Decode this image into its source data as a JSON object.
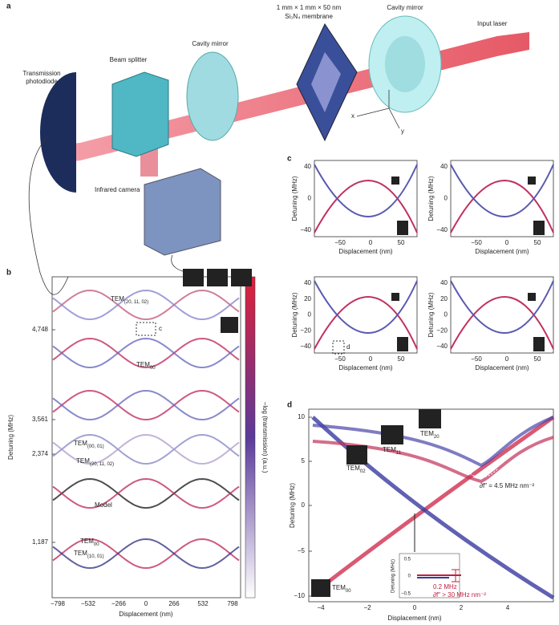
{
  "panel_a": {
    "label": "a",
    "photodiode": [
      "Transmission",
      "photodiode"
    ],
    "beam_splitter": "Beam splitter",
    "cavity_mirror_left": "Cavity mirror",
    "membrane": [
      "1 mm × 1 mm × 50 nm",
      "Si₃N₄ membrane"
    ],
    "cavity_mirror_right": "Cavity mirror",
    "input_laser": "Input laser",
    "infrared_camera": "Infrared camera",
    "axis_x": "x",
    "axis_y": "y"
  },
  "panel_b": {
    "label": "b",
    "y_label": "Detuning (MHz)",
    "x_label": "Displacement (nm)",
    "colorbar_label": "−log (transmission) (a.u.)",
    "yticks": [
      "4,748",
      "3,561",
      "2,374",
      "1,187"
    ],
    "xticks": [
      "−798",
      "−532",
      "−266",
      "0",
      "266",
      "532",
      "798"
    ],
    "inset_marker": "c",
    "annotations": [
      {
        "main": "TEM",
        "sub": "(20, 11, 02)"
      },
      {
        "main": "TEM",
        "sub": "00"
      },
      {
        "main": "TEM",
        "sub": "(00, 01)"
      },
      {
        "main": "TEM",
        "sub": "(20, 11, 02)"
      },
      {
        "main": "Model"
      },
      {
        "main": "TEM",
        "sub": "00"
      },
      {
        "main": "TEM",
        "sub": "(10, 01)"
      }
    ]
  },
  "panel_c": {
    "label": "c",
    "y_label": "Detuning (MHz)",
    "x_label": "Displacement (nm)",
    "yticks_top": [
      "40",
      "0",
      "−40"
    ],
    "yticks_bottom": [
      "40",
      "20",
      "0",
      "−20",
      "−40"
    ],
    "xticks": [
      "−50",
      "0",
      "50"
    ],
    "inset_marker": "d"
  },
  "panel_d": {
    "label": "d",
    "y_label": "Detuning (MHz)",
    "x_label": "Displacement (nm)",
    "yticks": [
      "10",
      "5",
      "0",
      "−5",
      "−10"
    ],
    "xticks": [
      "−4",
      "−2",
      "0",
      "2",
      "4"
    ],
    "modes": [
      {
        "main": "TEM",
        "sub": "20"
      },
      {
        "main": "TEM",
        "sub": "11"
      },
      {
        "main": "TEM",
        "sub": "02"
      },
      {
        "main": "TEM",
        "sub": "00"
      }
    ],
    "curvature_label": "∂f″ = 4.5 MHz nm⁻²",
    "inset": {
      "y_label": "Detuning (MHz)",
      "yticks": [
        "0.5",
        "0",
        "−0.5"
      ],
      "gap_label": "0.2 MHz",
      "curvature_label": "∂f″ > 30 MHz nm⁻²"
    }
  }
}
